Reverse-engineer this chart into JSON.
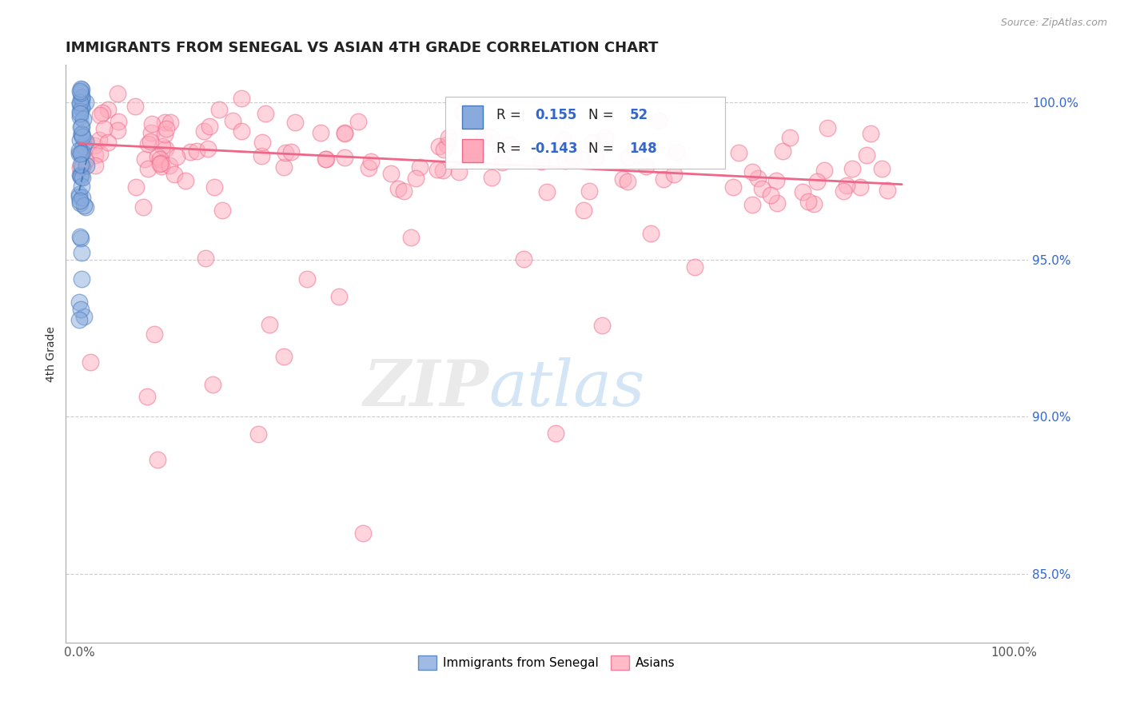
{
  "title": "IMMIGRANTS FROM SENEGAL VS ASIAN 4TH GRADE CORRELATION CHART",
  "source": "Source: ZipAtlas.com",
  "ylabel": "4th Grade",
  "legend_label1": "Immigrants from Senegal",
  "legend_label2": "Asians",
  "r1": 0.155,
  "n1": 52,
  "r2": -0.143,
  "n2": 148,
  "color_blue": "#88AADD",
  "color_pink": "#FFAABB",
  "color_blue_line": "#4477BB",
  "color_pink_line": "#EE6688",
  "background": "#FFFFFF",
  "grid_color": "#CCCCCC",
  "ylim_low": 0.828,
  "ylim_high": 1.012,
  "xlim_low": -0.015,
  "xlim_high": 1.015,
  "yticks": [
    0.85,
    0.9,
    0.95,
    1.0
  ],
  "ytick_labels": [
    "85.0%",
    "90.0%",
    "95.0%",
    "100.0%"
  ],
  "pink_trend_x0": 0.0,
  "pink_trend_y0": 0.987,
  "pink_trend_x1": 0.88,
  "pink_trend_y1": 0.974,
  "blue_trend_x0": 0.0,
  "blue_trend_y0": 0.972,
  "blue_trend_x1": 0.008,
  "blue_trend_y1": 0.982
}
